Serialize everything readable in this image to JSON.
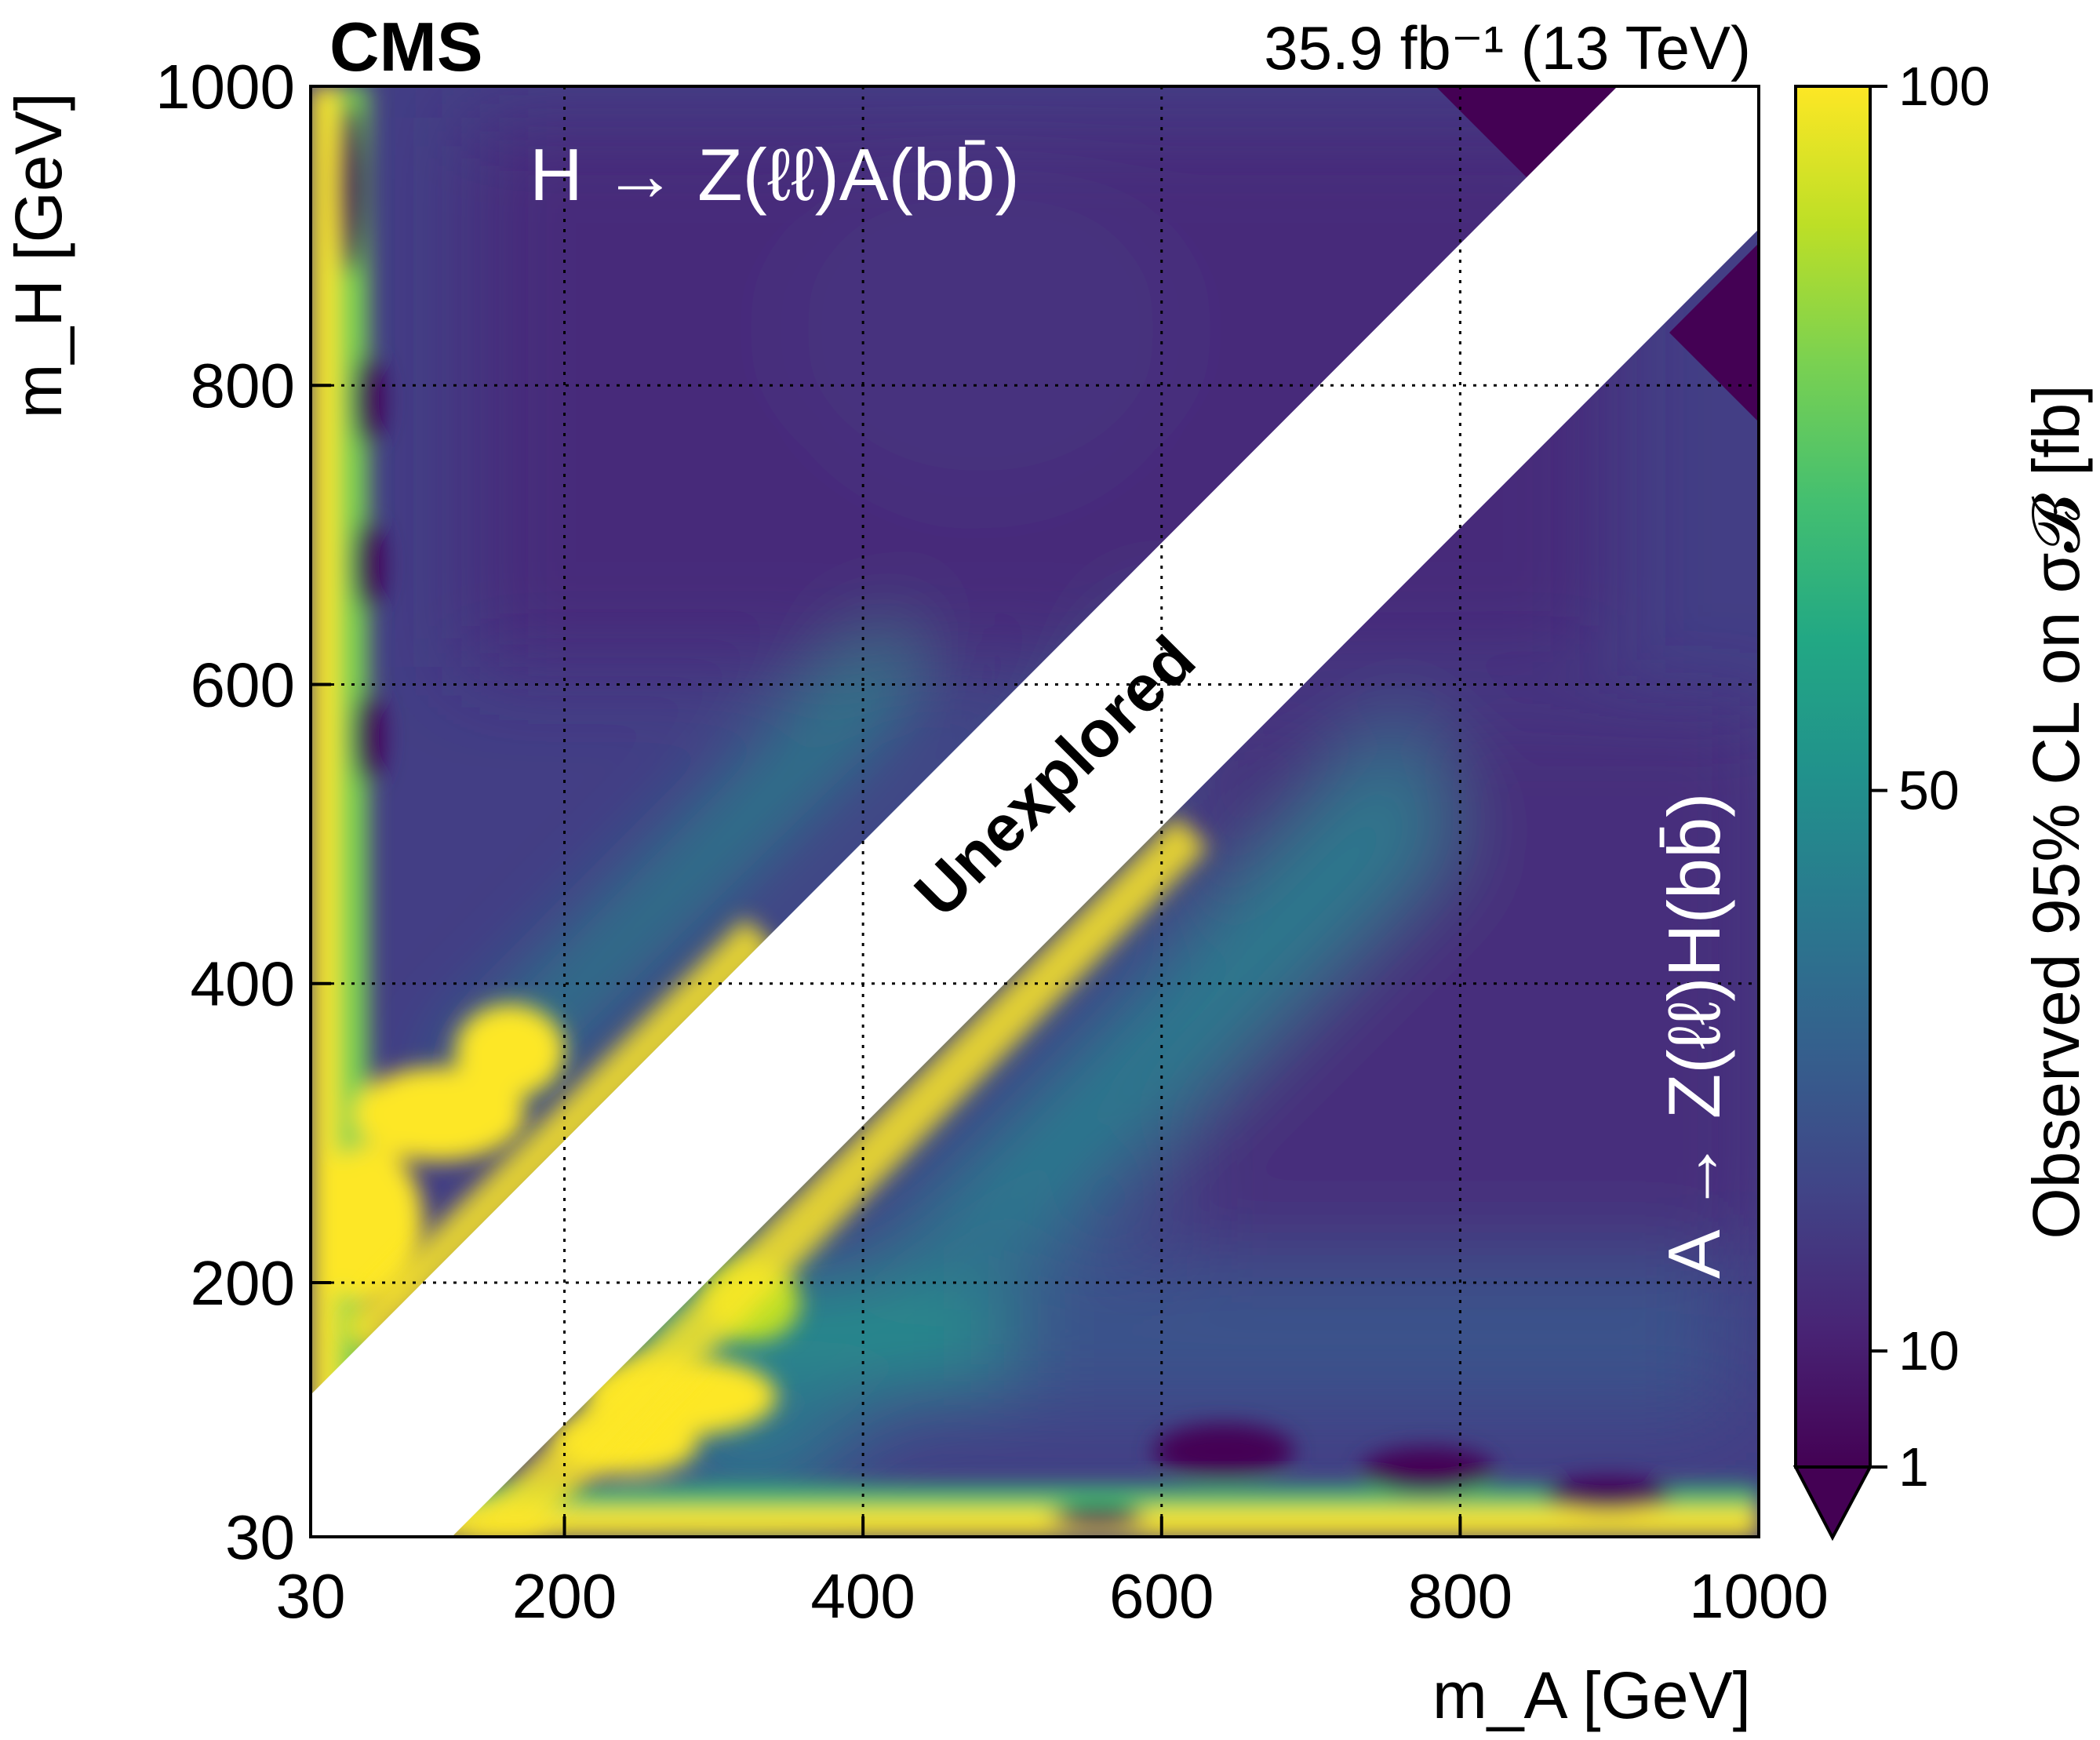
{
  "chart_data": {
    "type": "heatmap",
    "experiment_label": "CMS",
    "luminosity_label": "35.9 fb⁻¹ (13 TeV)",
    "xlabel": "m_A [GeV]",
    "ylabel": "m_H [GeV]",
    "xlim": [
      30,
      1000
    ],
    "ylim": [
      30,
      1000
    ],
    "x_ticks": [
      30,
      200,
      400,
      600,
      800,
      1000
    ],
    "y_ticks": [
      30,
      200,
      400,
      600,
      800,
      1000
    ],
    "x_tick_labels": [
      "30",
      "200",
      "400",
      "600",
      "800",
      "1000"
    ],
    "y_tick_labels": [
      "30",
      "200",
      "400",
      "600",
      "800",
      "1000"
    ],
    "grid_x": [
      200,
      400,
      600,
      800
    ],
    "grid_y": [
      200,
      400,
      600,
      800
    ],
    "grid": true,
    "colorbar": {
      "label": "Observed 95% CL on σ𝓑 [fb]",
      "min": 1,
      "max": 100,
      "ticks": [
        1,
        10,
        50,
        100
      ],
      "tick_labels": [
        "1",
        "10",
        "50",
        "100"
      ],
      "colormap": "viridis",
      "colors": [
        "#440154",
        "#482475",
        "#414487",
        "#355f8d",
        "#2a788e",
        "#21918c",
        "#22a884",
        "#44bf70",
        "#7ad151",
        "#bddf26",
        "#fde725"
      ]
    },
    "process_upper": "H → Z(ℓℓ)A(bb̄)",
    "process_lower": "A → Z(ℓℓ)H(bb̄)",
    "unexplored_label": "Unexplored",
    "unexplored_band": {
      "mass_difference_gev": 100
    }
  }
}
